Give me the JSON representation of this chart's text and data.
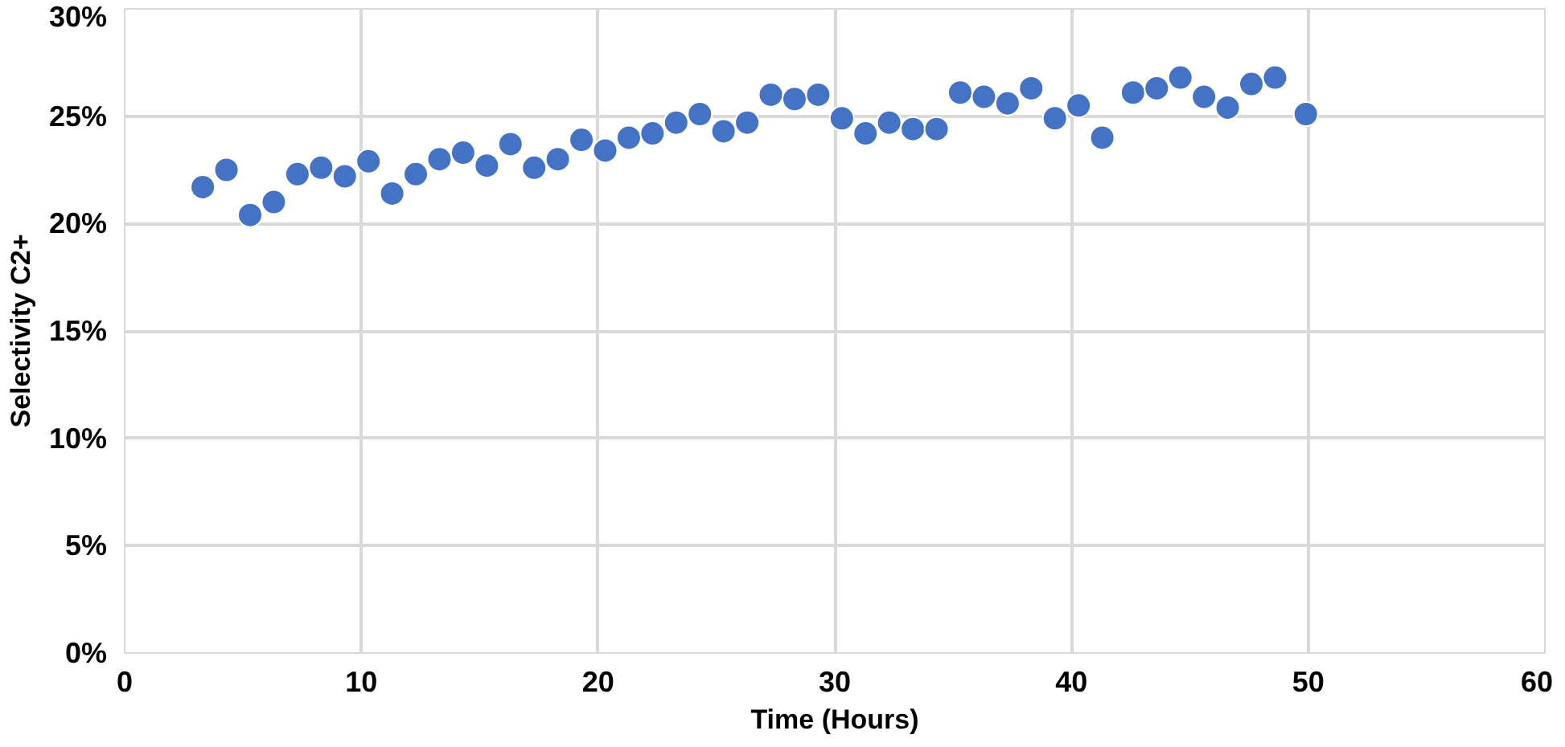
{
  "chart_data": {
    "type": "scatter",
    "xlabel": "Time (Hours)",
    "ylabel": "Selectivity C2+",
    "x": [
      3.3,
      4.3,
      5.3,
      6.3,
      7.3,
      8.3,
      9.3,
      10.3,
      11.3,
      12.3,
      13.3,
      14.3,
      15.3,
      16.3,
      17.3,
      18.3,
      19.3,
      20.3,
      21.3,
      22.3,
      23.3,
      24.3,
      25.3,
      26.3,
      27.3,
      28.3,
      29.3,
      30.3,
      31.3,
      32.3,
      33.3,
      34.3,
      35.3,
      36.3,
      37.3,
      38.3,
      39.3,
      40.3,
      41.3,
      42.6,
      43.6,
      44.6,
      45.6,
      46.6,
      47.6,
      48.6,
      49.9
    ],
    "values": [
      21.7,
      22.5,
      20.4,
      21.0,
      22.3,
      22.6,
      22.2,
      22.9,
      21.4,
      22.3,
      23.0,
      23.3,
      22.7,
      23.7,
      22.6,
      23.0,
      23.9,
      23.4,
      24.0,
      24.2,
      24.7,
      25.1,
      24.3,
      24.7,
      26.0,
      25.8,
      26.0,
      24.9,
      24.2,
      24.7,
      24.4,
      24.4,
      26.1,
      25.9,
      25.6,
      26.3,
      24.9,
      25.5,
      24.0,
      26.1,
      26.3,
      26.8,
      25.9,
      25.4,
      26.5,
      26.8,
      25.1
    ],
    "color": "#4472c4",
    "marker": "circle",
    "xlim": [
      0,
      60
    ],
    "xticks": [
      0,
      10,
      20,
      30,
      40,
      50,
      60
    ],
    "ylim": [
      0,
      30
    ],
    "yticks": [
      {
        "value": 0,
        "label": "0%"
      },
      {
        "value": 5,
        "label": "5%"
      },
      {
        "value": 10,
        "label": "10%"
      },
      {
        "value": 15,
        "label": "15%"
      },
      {
        "value": 20,
        "label": "20%"
      },
      {
        "value": 25,
        "label": "25%"
      },
      {
        "value": 30,
        "label": "30%"
      }
    ],
    "grid": true
  }
}
